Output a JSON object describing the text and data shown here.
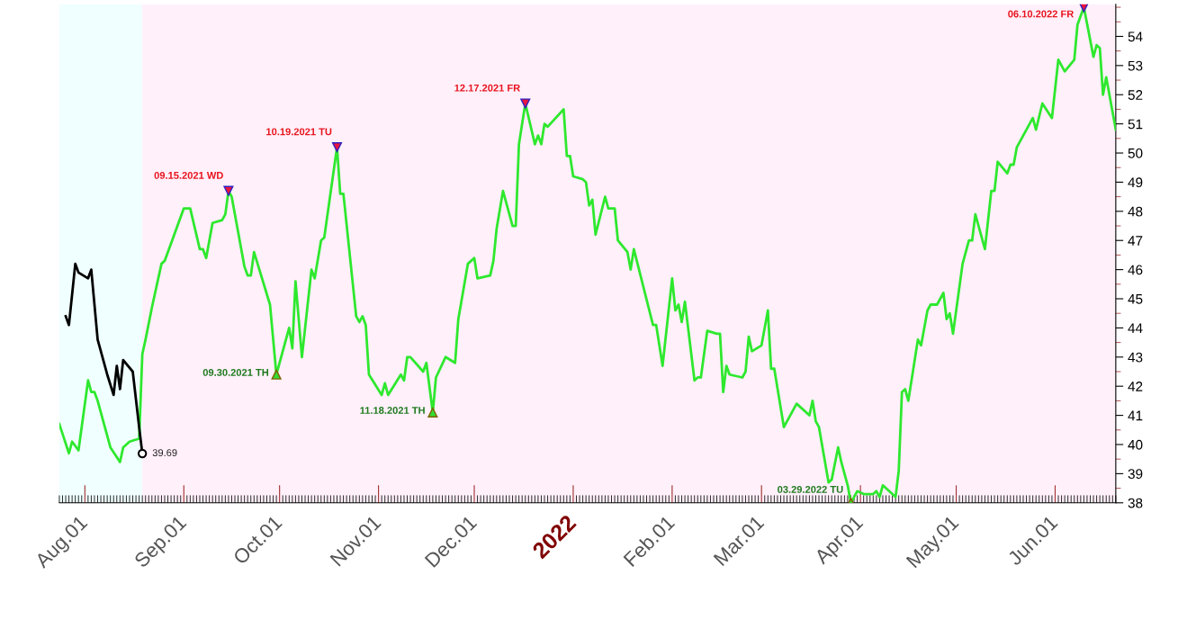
{
  "chart_data": {
    "type": "line",
    "xlim": [
      "2021-07-24",
      "2022-06-20"
    ],
    "ylim": [
      38,
      55.1
    ],
    "yticks": [
      38,
      39,
      40,
      41,
      42,
      43,
      44,
      45,
      46,
      47,
      48,
      49,
      50,
      51,
      52,
      53,
      54
    ],
    "xticks": [
      {
        "value": "2021-08-01",
        "label": "Aug.01"
      },
      {
        "value": "2021-09-01",
        "label": "Sep.01"
      },
      {
        "value": "2021-10-01",
        "label": "Oct.01"
      },
      {
        "value": "2021-11-01",
        "label": "Nov.01"
      },
      {
        "value": "2021-12-01",
        "label": "Dec.01"
      },
      {
        "value": "2022-01-01",
        "label": "2022"
      },
      {
        "value": "2022-02-01",
        "label": "Feb.01"
      },
      {
        "value": "2022-03-01",
        "label": "Mar.01"
      },
      {
        "value": "2022-04-01",
        "label": "Apr.01"
      },
      {
        "value": "2022-05-01",
        "label": "May.01"
      },
      {
        "value": "2022-06-01",
        "label": "Jun.01"
      }
    ],
    "bands": [
      {
        "axis": "x",
        "from": "2021-07-24",
        "to": "2021-08-19",
        "color": "#f0ffff"
      },
      {
        "axis": "x",
        "from": "2021-08-19",
        "to": "2022-06-20",
        "color": "#fff0fa"
      }
    ],
    "series": [
      {
        "color": "#2ee82e",
        "x": [
          "2021-07-24",
          "2021-07-27",
          "2021-07-28",
          "2021-07-30",
          "2021-08-02",
          "2021-08-03",
          "2021-08-04",
          "2021-08-05",
          "2021-08-09",
          "2021-08-12",
          "2021-08-13",
          "2021-08-15",
          "2021-08-18",
          "2021-08-19",
          "2021-08-20",
          "2021-08-22",
          "2021-08-25",
          "2021-08-26",
          "2021-08-30",
          "2021-09-01",
          "2021-09-03",
          "2021-09-06",
          "2021-09-07",
          "2021-09-08",
          "2021-09-10",
          "2021-09-13",
          "2021-09-14",
          "2021-09-15",
          "2021-09-16",
          "2021-09-20",
          "2021-09-21",
          "2021-09-22",
          "2021-09-23",
          "2021-09-28",
          "2021-09-30",
          "2021-10-04",
          "2021-10-05",
          "2021-10-06",
          "2021-10-08",
          "2021-10-11",
          "2021-10-12",
          "2021-10-14",
          "2021-10-15",
          "2021-10-19",
          "2021-10-20",
          "2021-10-21",
          "2021-10-25",
          "2021-10-26",
          "2021-10-27",
          "2021-10-28",
          "2021-10-29",
          "2021-11-02",
          "2021-11-03",
          "2021-11-04",
          "2021-11-08",
          "2021-11-09",
          "2021-11-10",
          "2021-11-11",
          "2021-11-15",
          "2021-11-16",
          "2021-11-18",
          "2021-11-19",
          "2021-11-22",
          "2021-11-25",
          "2021-11-26",
          "2021-11-29",
          "2021-12-01",
          "2021-12-02",
          "2021-12-06",
          "2021-12-07",
          "2021-12-08",
          "2021-12-10",
          "2021-12-13",
          "2021-12-14",
          "2021-12-15",
          "2021-12-17",
          "2021-12-20",
          "2021-12-21",
          "2021-12-22",
          "2021-12-23",
          "2021-12-24",
          "2021-12-29",
          "2021-12-30",
          "2021-12-31",
          "2022-01-01",
          "2022-01-04",
          "2022-01-05",
          "2022-01-06",
          "2022-01-07",
          "2022-01-08",
          "2022-01-11",
          "2022-01-12",
          "2022-01-14",
          "2022-01-15",
          "2022-01-18",
          "2022-01-19",
          "2022-01-20",
          "2022-01-26",
          "2022-01-27",
          "2022-01-29",
          "2022-02-01",
          "2022-02-02",
          "2022-02-03",
          "2022-02-04",
          "2022-02-05",
          "2022-02-08",
          "2022-02-09",
          "2022-02-10",
          "2022-02-12",
          "2022-02-15",
          "2022-02-16",
          "2022-02-17",
          "2022-02-18",
          "2022-02-19",
          "2022-02-23",
          "2022-02-24",
          "2022-02-25",
          "2022-02-26",
          "2022-03-01",
          "2022-03-03",
          "2022-03-04",
          "2022-03-05",
          "2022-03-08",
          "2022-03-12",
          "2022-03-16",
          "2022-03-17",
          "2022-03-18",
          "2022-03-19",
          "2022-03-22",
          "2022-03-23",
          "2022-03-25",
          "2022-03-26",
          "2022-03-28",
          "2022-03-29",
          "2022-03-31",
          "2022-04-02",
          "2022-04-05",
          "2022-04-06",
          "2022-04-07",
          "2022-04-08",
          "2022-04-12",
          "2022-04-13",
          "2022-04-14",
          "2022-04-15",
          "2022-04-16",
          "2022-04-19",
          "2022-04-20",
          "2022-04-22",
          "2022-04-23",
          "2022-04-25",
          "2022-04-27",
          "2022-04-28",
          "2022-04-29",
          "2022-04-30",
          "2022-05-03",
          "2022-05-05",
          "2022-05-06",
          "2022-05-07",
          "2022-05-10",
          "2022-05-12",
          "2022-05-13",
          "2022-05-14",
          "2022-05-17",
          "2022-05-18",
          "2022-05-19",
          "2022-05-20",
          "2022-05-25",
          "2022-05-26",
          "2022-05-28",
          "2022-05-31",
          "2022-06-02",
          "2022-06-04",
          "2022-06-07",
          "2022-06-08",
          "2022-06-09",
          "2022-06-10",
          "2022-06-13",
          "2022-06-14",
          "2022-06-15",
          "2022-06-16",
          "2022-06-17",
          "2022-06-20"
        ],
        "values": [
          40.7,
          39.7,
          40.1,
          39.8,
          42.2,
          41.8,
          41.8,
          41.5,
          39.9,
          39.4,
          39.9,
          40.1,
          40.2,
          43.1,
          43.6,
          44.7,
          46.2,
          46.3,
          47.5,
          48.1,
          48.1,
          46.7,
          46.7,
          46.4,
          47.6,
          47.7,
          47.9,
          48.7,
          48.5,
          46.1,
          45.8,
          45.8,
          46.6,
          44.8,
          42.4,
          44.0,
          43.3,
          45.6,
          43.0,
          46.0,
          45.7,
          47.0,
          47.1,
          50.2,
          48.6,
          48.6,
          44.4,
          44.2,
          44.4,
          44.1,
          42.4,
          41.7,
          42.1,
          41.7,
          42.4,
          42.2,
          43.0,
          43.0,
          42.5,
          42.8,
          41.1,
          42.3,
          43.0,
          42.8,
          44.3,
          46.2,
          46.4,
          45.7,
          45.8,
          46.3,
          47.4,
          48.7,
          47.5,
          47.5,
          50.3,
          51.7,
          50.3,
          50.6,
          50.3,
          51.0,
          50.9,
          51.5,
          49.9,
          49.9,
          49.2,
          49.1,
          49.0,
          48.2,
          48.4,
          47.2,
          48.5,
          48.1,
          48.1,
          47.0,
          46.6,
          46.0,
          46.7,
          44.1,
          44.1,
          42.7,
          45.7,
          44.6,
          44.8,
          44.2,
          44.9,
          42.2,
          42.3,
          42.3,
          43.9,
          43.8,
          43.8,
          41.8,
          42.7,
          42.4,
          42.3,
          42.5,
          43.7,
          43.2,
          43.4,
          44.6,
          42.6,
          42.6,
          40.6,
          41.4,
          41.0,
          41.5,
          40.8,
          40.6,
          38.7,
          38.8,
          39.9,
          39.4,
          38.6,
          38.0,
          38.4,
          38.3,
          38.3,
          38.4,
          38.2,
          38.6,
          38.2,
          39.1,
          41.8,
          41.9,
          41.5,
          43.6,
          43.4,
          44.6,
          44.8,
          44.8,
          45.2,
          44.3,
          44.5,
          43.8,
          46.2,
          47.0,
          47.0,
          47.9,
          46.7,
          48.7,
          48.7,
          49.7,
          49.3,
          49.6,
          49.6,
          50.2,
          51.2,
          50.8,
          51.7,
          51.2,
          53.2,
          52.8,
          53.2,
          54.4,
          54.7,
          55.0,
          53.3,
          53.7,
          53.6,
          52.0,
          52.6,
          50.8
        ]
      },
      {
        "color": "#000000",
        "x": [
          "2021-07-26",
          "2021-07-27",
          "2021-07-29",
          "2021-07-30",
          "2021-08-02",
          "2021-08-03",
          "2021-08-05",
          "2021-08-08",
          "2021-08-10",
          "2021-08-11",
          "2021-08-12",
          "2021-08-13",
          "2021-08-16",
          "2021-08-18",
          "2021-08-19"
        ],
        "values": [
          44.4,
          44.1,
          46.2,
          45.9,
          45.7,
          46.0,
          43.6,
          42.4,
          41.7,
          42.7,
          41.9,
          42.9,
          42.5,
          40.6,
          39.69
        ]
      }
    ],
    "annotations": [
      {
        "text": "09.15.2021 WD",
        "x": "2021-09-15",
        "y": 48.7
      },
      {
        "text": "09.30.2021 TH",
        "x": "2021-09-30",
        "y": 42.4
      },
      {
        "text": "10.19.2021 TU",
        "x": "2021-10-19",
        "y": 50.2
      },
      {
        "text": "11.18.2021 TH",
        "x": "2021-11-18",
        "y": 41.1
      },
      {
        "text": "12.17.2021 FR",
        "x": "2021-12-17",
        "y": 51.7
      },
      {
        "text": "03.29.2022 TU",
        "x": "2022-03-29",
        "y": 38.0
      },
      {
        "text": "06.10.2022 FR",
        "x": "2022-06-10",
        "y": 55.0
      },
      {
        "text": "39.69",
        "x": "2021-08-19",
        "y": 39.69
      }
    ]
  }
}
